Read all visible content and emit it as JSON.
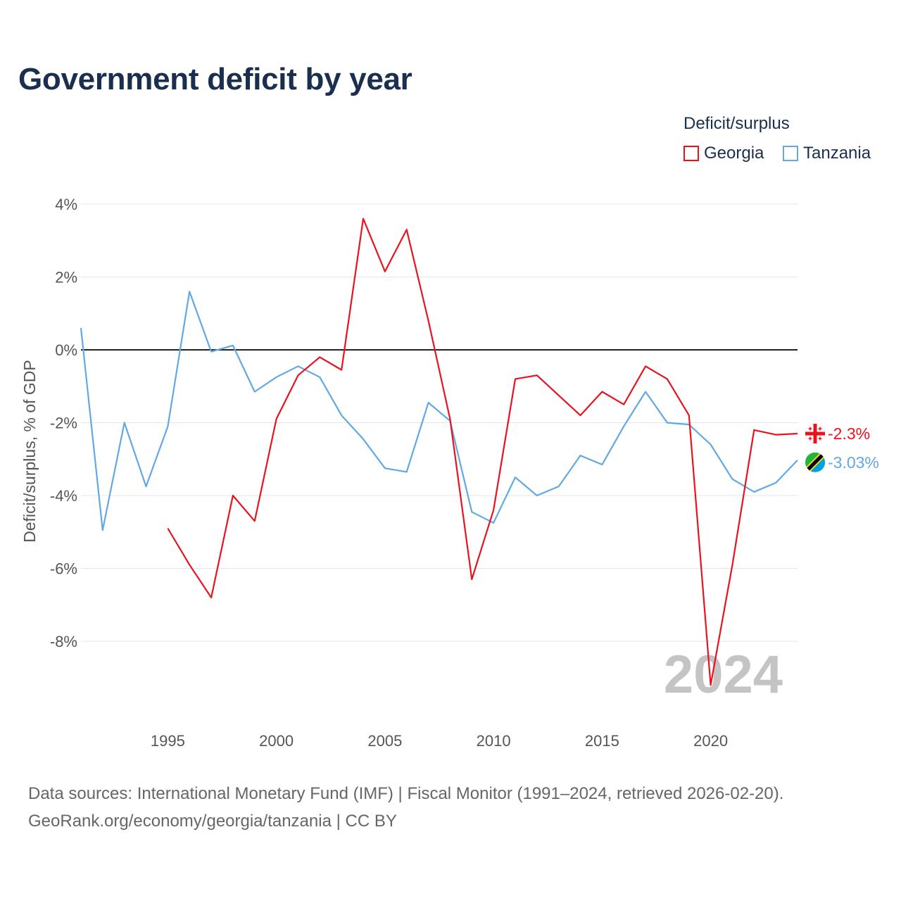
{
  "chart_data": {
    "type": "line",
    "title": "Government deficit by year",
    "ylabel": "Deficit/surplus, % of GDP",
    "xlabel": "",
    "xlim": [
      1991,
      2024
    ],
    "ylim": [
      -10,
      4.5
    ],
    "yticks": [
      4,
      2,
      0,
      -2,
      -4,
      -6,
      -8
    ],
    "ytick_labels": [
      "4%",
      "2%",
      "0%",
      "-2%",
      "-4%",
      "-6%",
      "-8%"
    ],
    "xticks": [
      1995,
      2000,
      2005,
      2010,
      2015,
      2020
    ],
    "xtick_labels": [
      "1995",
      "2000",
      "2005",
      "2010",
      "2015",
      "2020"
    ],
    "legend_title": "Deficit/surplus",
    "legend_position": "top-right",
    "watermark_year": "2024",
    "series": [
      {
        "name": "Georgia",
        "color": "#e8131f",
        "end_label": "-2.3%",
        "flag_icon": "georgia-flag-icon",
        "x": [
          1995,
          1996,
          1997,
          1998,
          1999,
          2000,
          2001,
          2002,
          2003,
          2004,
          2005,
          2006,
          2007,
          2008,
          2009,
          2010,
          2011,
          2012,
          2013,
          2014,
          2015,
          2016,
          2017,
          2018,
          2019,
          2020,
          2021,
          2022,
          2023,
          2024
        ],
        "values": [
          -4.9,
          -5.9,
          -6.8,
          -4.0,
          -4.7,
          -1.9,
          -0.7,
          -0.2,
          -0.55,
          3.6,
          2.15,
          3.3,
          0.8,
          -1.9,
          -6.3,
          -4.4,
          -0.8,
          -0.7,
          -1.25,
          -1.8,
          -1.15,
          -1.5,
          -0.45,
          -0.8,
          -1.8,
          -9.2,
          -5.9,
          -2.2,
          -2.33,
          -2.3
        ]
      },
      {
        "name": "Tanzania",
        "color": "#62a8e5",
        "end_label": "-3.03%",
        "flag_icon": "tanzania-flag-icon",
        "x": [
          1991,
          1992,
          1993,
          1994,
          1995,
          1996,
          1997,
          1998,
          1999,
          2000,
          2001,
          2002,
          2003,
          2004,
          2005,
          2006,
          2007,
          2008,
          2009,
          2010,
          2011,
          2012,
          2013,
          2014,
          2015,
          2016,
          2017,
          2018,
          2019,
          2020,
          2021,
          2022,
          2023,
          2024
        ],
        "values": [
          0.6,
          -4.95,
          -2.0,
          -3.75,
          -2.1,
          1.6,
          -0.05,
          0.12,
          -1.15,
          -0.75,
          -0.45,
          -0.75,
          -1.8,
          -2.45,
          -3.25,
          -3.35,
          -1.45,
          -1.95,
          -4.45,
          -4.75,
          -3.5,
          -4.0,
          -3.75,
          -2.9,
          -3.15,
          -2.1,
          -1.15,
          -2.0,
          -2.05,
          -2.6,
          -3.55,
          -3.9,
          -3.65,
          -3.03
        ]
      }
    ]
  },
  "footer": {
    "source_line": "Data sources: International Monetary Fund (IMF) | Fiscal Monitor (1991–2024, retrieved 2026-02-20).",
    "credit_line": "GeoRank.org/economy/georgia/tanzania | CC BY"
  }
}
